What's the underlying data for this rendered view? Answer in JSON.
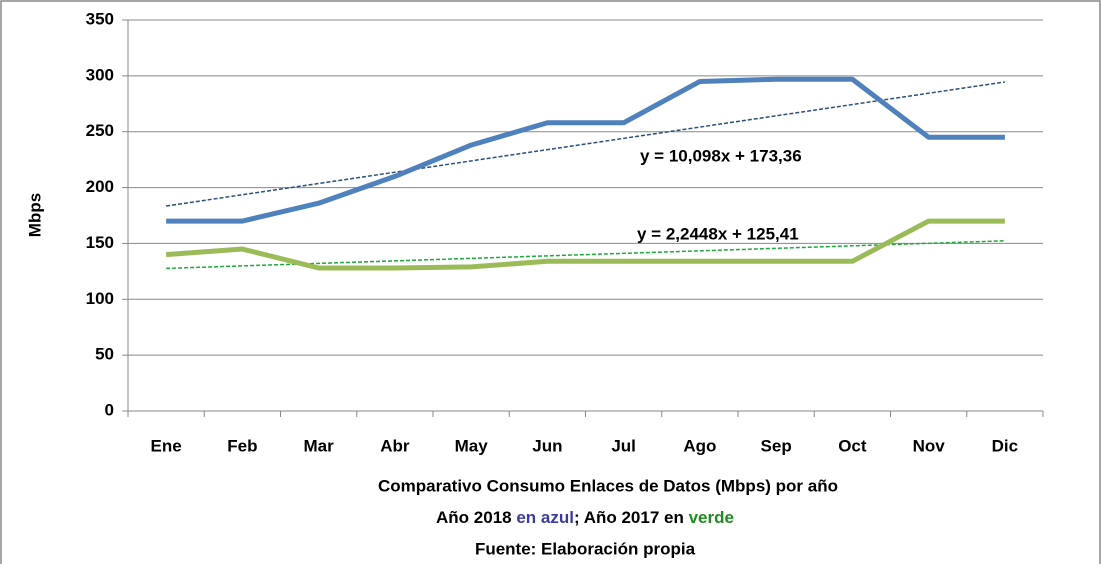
{
  "chart_data": {
    "type": "line",
    "y_label": "Mbps",
    "x_label": [
      "Comparativo Consumo Enlaces de Datos (Mbps) por año",
      [
        "Año 2018 ",
        "en azul",
        "; Año 2017 en ",
        "verde"
      ],
      "Fuente: Elaboración propia"
    ],
    "x_label_colors": [
      "#000000",
      "#3c3c9e",
      "#000000",
      "#1e8c1e"
    ],
    "categories": [
      "Ene",
      "Feb",
      "Mar",
      "Abr",
      "May",
      "Jun",
      "Jul",
      "Ago",
      "Sep",
      "Oct",
      "Nov",
      "Dic"
    ],
    "series": [
      {
        "color": "#4f81bd",
        "values": [
          170,
          170,
          186,
          210,
          238,
          258,
          258,
          295,
          297,
          297,
          245,
          245
        ]
      },
      {
        "color": "#9bbb59",
        "values": [
          140,
          145,
          128,
          128,
          129,
          134,
          134,
          134,
          134,
          134,
          170,
          170
        ]
      }
    ],
    "trendlines": [
      {
        "slope": 10.098,
        "intercept": 173.36,
        "label": "y = 10,098x + 173,36",
        "color": "#2c4f7c"
      },
      {
        "slope": 2.2448,
        "intercept": 125.41,
        "label": "y = 2,2448x + 125,41",
        "color": "#1fa83a"
      }
    ],
    "ylim": [
      0,
      350
    ],
    "yticks": [
      0,
      50,
      100,
      150,
      200,
      250,
      300,
      350
    ],
    "grid": true
  }
}
